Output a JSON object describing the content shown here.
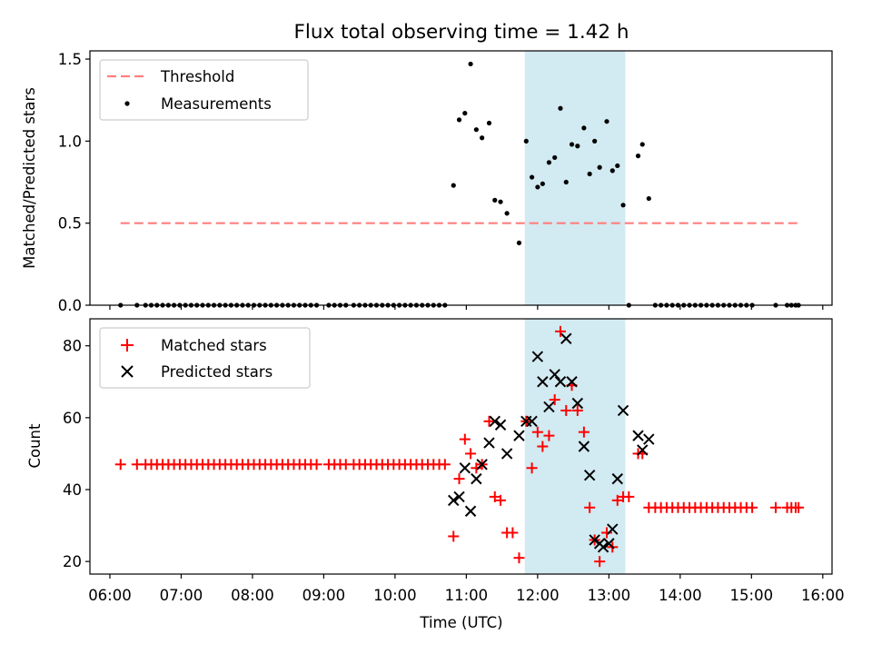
{
  "figure": {
    "title": "Flux total observing time = 1.42 h",
    "xlabel": "Time (UTC)",
    "x_tick_labels": [
      "06:00",
      "07:00",
      "08:00",
      "09:00",
      "10:00",
      "11:00",
      "12:00",
      "13:00",
      "14:00",
      "15:00",
      "16:00"
    ],
    "x_tick_hours": [
      6,
      7,
      8,
      9,
      10,
      11,
      12,
      13,
      14,
      15,
      16
    ],
    "xlim_hours": [
      5.72,
      16.13
    ],
    "shaded_span_hours": [
      11.82,
      13.23
    ],
    "colors": {
      "shade": "#add8e6",
      "threshold": "#ff7f7f",
      "matched": "#ff0000",
      "predicted": "#000000",
      "measurement": "#000000"
    }
  },
  "chart_data": [
    {
      "type": "scatter",
      "ylabel": "Matched/Predicted stars",
      "ylim": [
        0,
        1.55
      ],
      "y_ticks": [
        0.0,
        0.5,
        1.0,
        1.5
      ],
      "y_tick_labels": [
        "0.0",
        "0.5",
        "1.0",
        "1.5"
      ],
      "legend_position": "top-left",
      "threshold": {
        "name": "Threshold",
        "value": 0.5,
        "x_range_hours": [
          6.15,
          15.65
        ]
      },
      "series": [
        {
          "name": "Measurements",
          "points": [
            [
              6.15,
              0
            ],
            [
              6.38,
              0
            ],
            [
              6.5,
              0
            ],
            [
              6.58,
              0
            ],
            [
              6.66,
              0
            ],
            [
              6.74,
              0
            ],
            [
              6.82,
              0
            ],
            [
              6.9,
              0
            ],
            [
              6.98,
              0
            ],
            [
              7.06,
              0
            ],
            [
              7.14,
              0
            ],
            [
              7.22,
              0
            ],
            [
              7.3,
              0
            ],
            [
              7.38,
              0
            ],
            [
              7.46,
              0
            ],
            [
              7.54,
              0
            ],
            [
              7.62,
              0
            ],
            [
              7.7,
              0
            ],
            [
              7.78,
              0
            ],
            [
              7.86,
              0
            ],
            [
              7.94,
              0
            ],
            [
              8.02,
              0
            ],
            [
              8.1,
              0
            ],
            [
              8.18,
              0
            ],
            [
              8.26,
              0
            ],
            [
              8.34,
              0
            ],
            [
              8.42,
              0
            ],
            [
              8.5,
              0
            ],
            [
              8.58,
              0
            ],
            [
              8.66,
              0
            ],
            [
              8.74,
              0
            ],
            [
              8.82,
              0
            ],
            [
              8.9,
              0
            ],
            [
              9.07,
              0
            ],
            [
              9.15,
              0
            ],
            [
              9.23,
              0
            ],
            [
              9.31,
              0
            ],
            [
              9.42,
              0
            ],
            [
              9.5,
              0
            ],
            [
              9.58,
              0
            ],
            [
              9.66,
              0
            ],
            [
              9.74,
              0
            ],
            [
              9.82,
              0
            ],
            [
              9.9,
              0
            ],
            [
              9.98,
              0
            ],
            [
              10.06,
              0
            ],
            [
              10.14,
              0
            ],
            [
              10.22,
              0
            ],
            [
              10.3,
              0
            ],
            [
              10.38,
              0
            ],
            [
              10.46,
              0
            ],
            [
              10.54,
              0
            ],
            [
              10.62,
              0
            ],
            [
              10.7,
              0
            ],
            [
              10.82,
              0.73
            ],
            [
              10.9,
              1.13
            ],
            [
              10.98,
              1.17
            ],
            [
              11.06,
              1.47
            ],
            [
              11.14,
              1.07
            ],
            [
              11.22,
              1.02
            ],
            [
              11.32,
              1.11
            ],
            [
              11.4,
              0.64
            ],
            [
              11.48,
              0.63
            ],
            [
              11.57,
              0.56
            ],
            [
              11.74,
              0.38
            ],
            [
              11.84,
              1.0
            ],
            [
              11.92,
              0.78
            ],
            [
              12.0,
              0.72
            ],
            [
              12.07,
              0.74
            ],
            [
              12.16,
              0.87
            ],
            [
              12.24,
              0.9
            ],
            [
              12.32,
              1.2
            ],
            [
              12.4,
              0.75
            ],
            [
              12.48,
              0.98
            ],
            [
              12.56,
              0.97
            ],
            [
              12.65,
              1.08
            ],
            [
              12.73,
              0.8
            ],
            [
              12.8,
              1.0
            ],
            [
              12.87,
              0.84
            ],
            [
              12.97,
              1.12
            ],
            [
              13.05,
              0.82
            ],
            [
              13.12,
              0.85
            ],
            [
              13.2,
              0.61
            ],
            [
              13.28,
              0
            ],
            [
              13.41,
              0.91
            ],
            [
              13.47,
              0.98
            ],
            [
              13.56,
              0.65
            ],
            [
              13.65,
              0
            ],
            [
              13.73,
              0
            ],
            [
              13.81,
              0
            ],
            [
              13.89,
              0
            ],
            [
              13.97,
              0
            ],
            [
              14.05,
              0
            ],
            [
              14.13,
              0
            ],
            [
              14.21,
              0
            ],
            [
              14.29,
              0
            ],
            [
              14.37,
              0
            ],
            [
              14.45,
              0
            ],
            [
              14.53,
              0
            ],
            [
              14.61,
              0
            ],
            [
              14.69,
              0
            ],
            [
              14.77,
              0
            ],
            [
              14.85,
              0
            ],
            [
              14.93,
              0
            ],
            [
              15.01,
              0
            ],
            [
              15.34,
              0
            ],
            [
              15.5,
              0
            ],
            [
              15.56,
              0
            ],
            [
              15.62,
              0
            ],
            [
              15.66,
              0
            ]
          ]
        }
      ]
    },
    {
      "type": "scatter",
      "ylabel": "Count",
      "ylim": [
        16.5,
        87.5
      ],
      "y_ticks": [
        20,
        40,
        60,
        80
      ],
      "y_tick_labels": [
        "20",
        "40",
        "60",
        "80"
      ],
      "legend_position": "top-left",
      "series": [
        {
          "name": "Matched stars",
          "marker": "plus",
          "points": [
            [
              6.15,
              47
            ],
            [
              6.38,
              47
            ],
            [
              6.5,
              47
            ],
            [
              6.58,
              47
            ],
            [
              6.66,
              47
            ],
            [
              6.74,
              47
            ],
            [
              6.82,
              47
            ],
            [
              6.9,
              47
            ],
            [
              6.98,
              47
            ],
            [
              7.06,
              47
            ],
            [
              7.14,
              47
            ],
            [
              7.22,
              47
            ],
            [
              7.3,
              47
            ],
            [
              7.38,
              47
            ],
            [
              7.46,
              47
            ],
            [
              7.54,
              47
            ],
            [
              7.62,
              47
            ],
            [
              7.7,
              47
            ],
            [
              7.78,
              47
            ],
            [
              7.86,
              47
            ],
            [
              7.94,
              47
            ],
            [
              8.02,
              47
            ],
            [
              8.1,
              47
            ],
            [
              8.18,
              47
            ],
            [
              8.26,
              47
            ],
            [
              8.34,
              47
            ],
            [
              8.42,
              47
            ],
            [
              8.5,
              47
            ],
            [
              8.58,
              47
            ],
            [
              8.66,
              47
            ],
            [
              8.74,
              47
            ],
            [
              8.82,
              47
            ],
            [
              8.9,
              47
            ],
            [
              9.07,
              47
            ],
            [
              9.15,
              47
            ],
            [
              9.23,
              47
            ],
            [
              9.31,
              47
            ],
            [
              9.42,
              47
            ],
            [
              9.5,
              47
            ],
            [
              9.58,
              47
            ],
            [
              9.66,
              47
            ],
            [
              9.74,
              47
            ],
            [
              9.82,
              47
            ],
            [
              9.9,
              47
            ],
            [
              9.98,
              47
            ],
            [
              10.06,
              47
            ],
            [
              10.14,
              47
            ],
            [
              10.22,
              47
            ],
            [
              10.3,
              47
            ],
            [
              10.38,
              47
            ],
            [
              10.46,
              47
            ],
            [
              10.54,
              47
            ],
            [
              10.62,
              47
            ],
            [
              10.7,
              47
            ],
            [
              10.82,
              27
            ],
            [
              10.9,
              43
            ],
            [
              10.98,
              54
            ],
            [
              11.06,
              50
            ],
            [
              11.14,
              46
            ],
            [
              11.22,
              47
            ],
            [
              11.32,
              59
            ],
            [
              11.4,
              38
            ],
            [
              11.48,
              37
            ],
            [
              11.57,
              28
            ],
            [
              11.65,
              28
            ],
            [
              11.74,
              21
            ],
            [
              11.84,
              59
            ],
            [
              11.92,
              46
            ],
            [
              12.0,
              56
            ],
            [
              12.07,
              52
            ],
            [
              12.16,
              55
            ],
            [
              12.24,
              65
            ],
            [
              12.32,
              84
            ],
            [
              12.4,
              62
            ],
            [
              12.48,
              69
            ],
            [
              12.56,
              62
            ],
            [
              12.65,
              56
            ],
            [
              12.73,
              35
            ],
            [
              12.8,
              26
            ],
            [
              12.87,
              20
            ],
            [
              12.97,
              28
            ],
            [
              13.05,
              24
            ],
            [
              13.12,
              37
            ],
            [
              13.2,
              38
            ],
            [
              13.28,
              38
            ],
            [
              13.41,
              50
            ],
            [
              13.47,
              50
            ],
            [
              13.56,
              35
            ],
            [
              13.65,
              35
            ],
            [
              13.73,
              35
            ],
            [
              13.81,
              35
            ],
            [
              13.89,
              35
            ],
            [
              13.97,
              35
            ],
            [
              14.05,
              35
            ],
            [
              14.13,
              35
            ],
            [
              14.21,
              35
            ],
            [
              14.29,
              35
            ],
            [
              14.37,
              35
            ],
            [
              14.45,
              35
            ],
            [
              14.53,
              35
            ],
            [
              14.61,
              35
            ],
            [
              14.69,
              35
            ],
            [
              14.77,
              35
            ],
            [
              14.85,
              35
            ],
            [
              14.93,
              35
            ],
            [
              15.01,
              35
            ],
            [
              15.34,
              35
            ],
            [
              15.5,
              35
            ],
            [
              15.56,
              35
            ],
            [
              15.62,
              35
            ],
            [
              15.66,
              35
            ]
          ]
        },
        {
          "name": "Predicted stars",
          "marker": "x",
          "points": [
            [
              10.82,
              37
            ],
            [
              10.9,
              38
            ],
            [
              10.98,
              46
            ],
            [
              11.06,
              34
            ],
            [
              11.14,
              43
            ],
            [
              11.22,
              47
            ],
            [
              11.32,
              53
            ],
            [
              11.4,
              59
            ],
            [
              11.48,
              58
            ],
            [
              11.57,
              50
            ],
            [
              11.74,
              55
            ],
            [
              11.84,
              59
            ],
            [
              11.92,
              59
            ],
            [
              12.0,
              77
            ],
            [
              12.07,
              70
            ],
            [
              12.16,
              63
            ],
            [
              12.24,
              72
            ],
            [
              12.32,
              70
            ],
            [
              12.4,
              82
            ],
            [
              12.48,
              70
            ],
            [
              12.56,
              64
            ],
            [
              12.65,
              52
            ],
            [
              12.73,
              44
            ],
            [
              12.8,
              26
            ],
            [
              12.87,
              25
            ],
            [
              12.92,
              24
            ],
            [
              13.0,
              25
            ],
            [
              13.05,
              29
            ],
            [
              13.12,
              43
            ],
            [
              13.2,
              62
            ],
            [
              13.41,
              55
            ],
            [
              13.47,
              51
            ],
            [
              13.56,
              54
            ]
          ]
        }
      ]
    }
  ]
}
